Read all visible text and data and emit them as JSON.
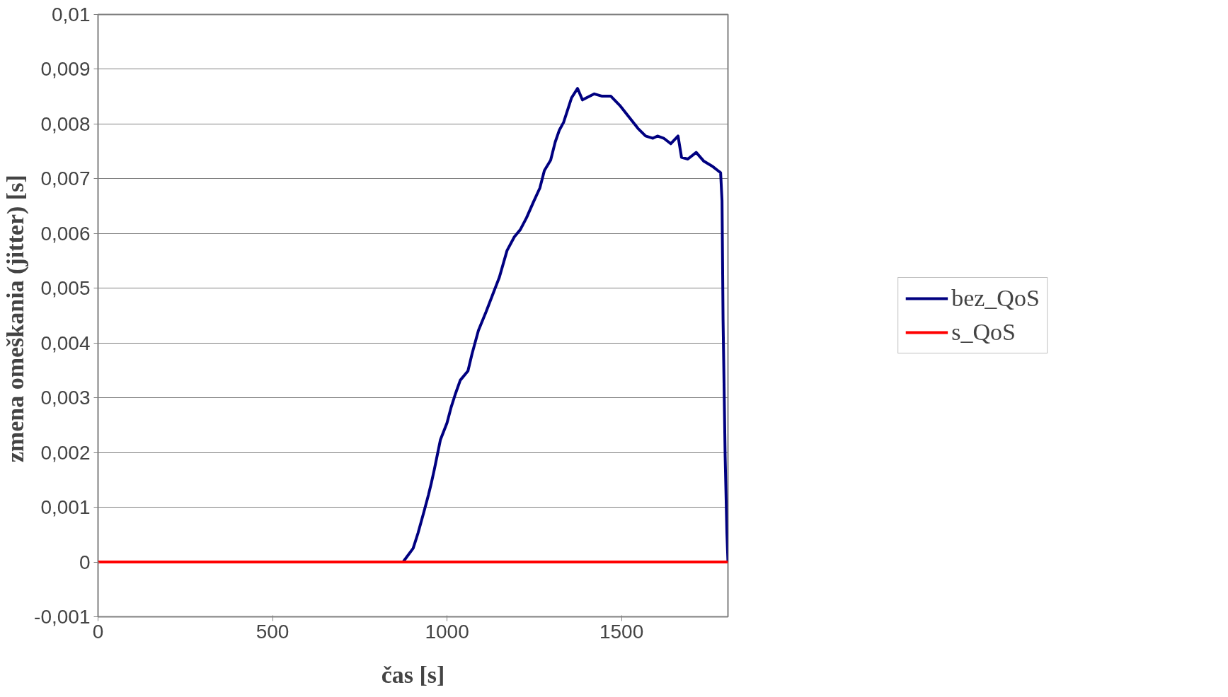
{
  "chart_data": {
    "type": "line",
    "xlabel": "čas [s]",
    "ylabel": "zmena omeškania (jitter)  [s]",
    "xlim": [
      0,
      1805
    ],
    "xticks": [
      0,
      500,
      1000,
      1500
    ],
    "ylim": [
      -0.001,
      0.01
    ],
    "yticks": [
      {
        "value": -0.001,
        "label": "-0,001"
      },
      {
        "value": 0,
        "label": "0"
      },
      {
        "value": 0.001,
        "label": "0,001"
      },
      {
        "value": 0.002,
        "label": "0,002"
      },
      {
        "value": 0.003,
        "label": "0,003"
      },
      {
        "value": 0.004,
        "label": "0,004"
      },
      {
        "value": 0.005,
        "label": "0,005"
      },
      {
        "value": 0.006,
        "label": "0,006"
      },
      {
        "value": 0.007,
        "label": "0,007"
      },
      {
        "value": 0.008,
        "label": "0,008"
      },
      {
        "value": 0.009,
        "label": "0,009"
      },
      {
        "value": 0.01,
        "label": "0,01"
      }
    ],
    "grid": "y",
    "legend": "right",
    "marker": "none",
    "line_style": "solid",
    "series": [
      {
        "name": "bez_QoS",
        "color": "#000080",
        "x": [
          874,
          903,
          917,
          934,
          947,
          955,
          964,
          972,
          981,
          1000,
          1012,
          1024,
          1038,
          1060,
          1072,
          1090,
          1112,
          1133,
          1150,
          1172,
          1193,
          1210,
          1228,
          1248,
          1266,
          1279,
          1297,
          1310,
          1322,
          1334,
          1357,
          1374,
          1388,
          1400,
          1422,
          1443,
          1469,
          1495,
          1521,
          1547,
          1569,
          1590,
          1603,
          1621,
          1641,
          1662,
          1672,
          1690,
          1714,
          1736,
          1762,
          1776,
          1784,
          1788,
          1791,
          1797,
          1802,
          1805
        ],
        "values": [
          0,
          0.00025,
          0.00053,
          0.00092,
          0.00123,
          0.00144,
          0.0017,
          0.00195,
          0.00223,
          0.00254,
          0.00283,
          0.00307,
          0.00332,
          0.00349,
          0.00381,
          0.00423,
          0.00457,
          0.00492,
          0.0052,
          0.00569,
          0.00594,
          0.00607,
          0.00629,
          0.00658,
          0.00683,
          0.00715,
          0.00734,
          0.00767,
          0.00789,
          0.00803,
          0.00848,
          0.00865,
          0.00844,
          0.00848,
          0.00855,
          0.00851,
          0.00851,
          0.00834,
          0.00813,
          0.00792,
          0.00778,
          0.00774,
          0.00778,
          0.00774,
          0.00764,
          0.00778,
          0.00739,
          0.00736,
          0.00748,
          0.00732,
          0.00722,
          0.00715,
          0.00711,
          0.0066,
          0.00443,
          0.00192,
          0.00053,
          0
        ]
      },
      {
        "name": "s_QoS",
        "color": "#ff0000",
        "x": [
          0,
          1805
        ],
        "values": [
          0,
          0
        ]
      }
    ]
  }
}
